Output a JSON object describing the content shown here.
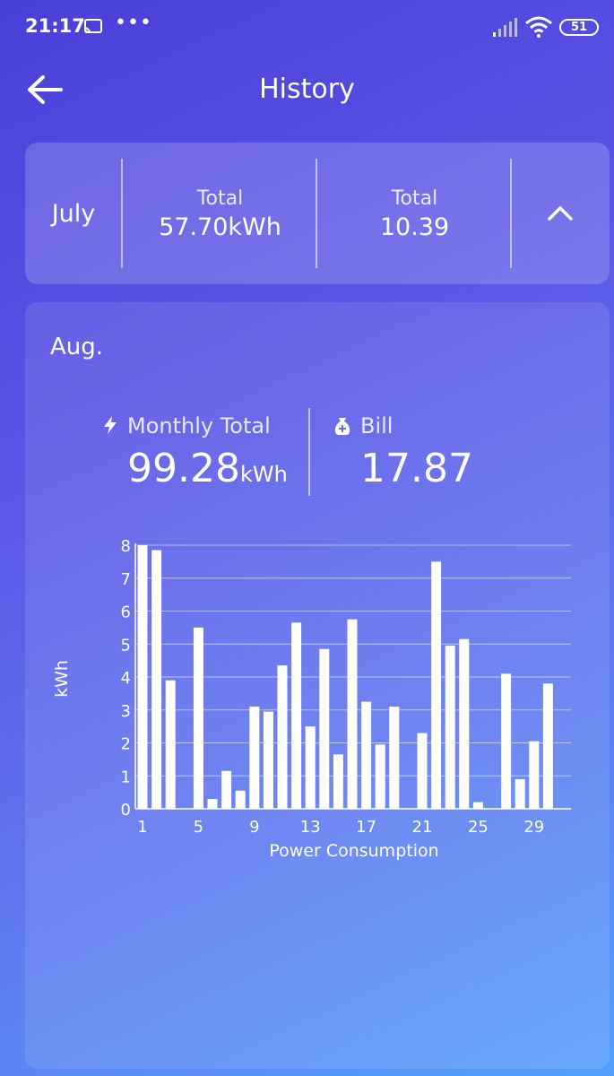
{
  "status_bar": {
    "time": "21:17",
    "dots": "•••",
    "battery": "51"
  },
  "header": {
    "title": "History"
  },
  "summary": {
    "month": "July",
    "energy_label": "Total",
    "energy_value": "57.70kWh",
    "bill_label": "Total",
    "bill_value": "10.39"
  },
  "current": {
    "month": "Aug.",
    "monthly_label": "Monthly Total",
    "monthly_value": "99.28",
    "monthly_unit": "kWh",
    "bill_label": "Bill",
    "bill_value": "17.87"
  },
  "chart_data": {
    "type": "bar",
    "xlabel": "Power Consumption",
    "ylabel": "kWh",
    "ylim": [
      0,
      8
    ],
    "yticks": [
      0,
      1,
      2,
      3,
      4,
      5,
      6,
      7,
      8
    ],
    "xtick_labels": [
      "1",
      "5",
      "9",
      "13",
      "17",
      "21",
      "25",
      "29"
    ],
    "x": [
      1,
      2,
      3,
      4,
      5,
      6,
      7,
      8,
      9,
      10,
      11,
      12,
      13,
      14,
      15,
      16,
      17,
      18,
      19,
      20,
      21,
      22,
      23,
      24,
      25,
      26,
      27,
      28,
      29,
      30
    ],
    "values": [
      8.0,
      7.85,
      3.9,
      0,
      5.5,
      0.3,
      1.15,
      0.55,
      3.1,
      2.95,
      4.35,
      5.65,
      2.5,
      4.85,
      1.65,
      5.75,
      3.25,
      1.95,
      3.1,
      0,
      2.3,
      7.5,
      4.95,
      5.15,
      0.2,
      0,
      4.1,
      0.9,
      2.05,
      3.8
    ],
    "grid": true,
    "bar_color": "#ffffff"
  }
}
